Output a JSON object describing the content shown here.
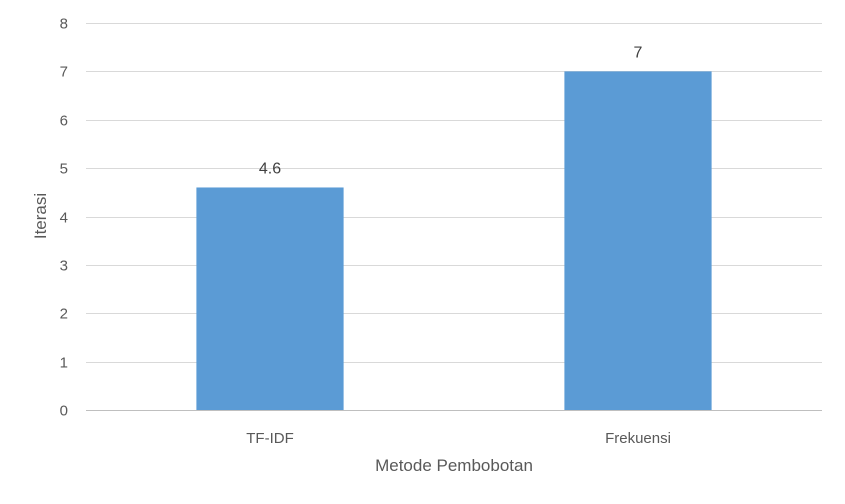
{
  "chart_data": {
    "type": "bar",
    "categories": [
      "TF-IDF",
      "Frekuensi"
    ],
    "series": [
      {
        "values": [
          4.6,
          7
        ],
        "color": "#5b9bd5"
      }
    ],
    "data_labels": [
      "4.6",
      "7"
    ],
    "xlabel": "Metode Pembobotan",
    "ylabel": "Iterasi",
    "ylim": [
      0,
      8
    ],
    "yticks": [
      0,
      1,
      2,
      3,
      4,
      5,
      6,
      7,
      8
    ],
    "grid": true,
    "legend": "none"
  }
}
